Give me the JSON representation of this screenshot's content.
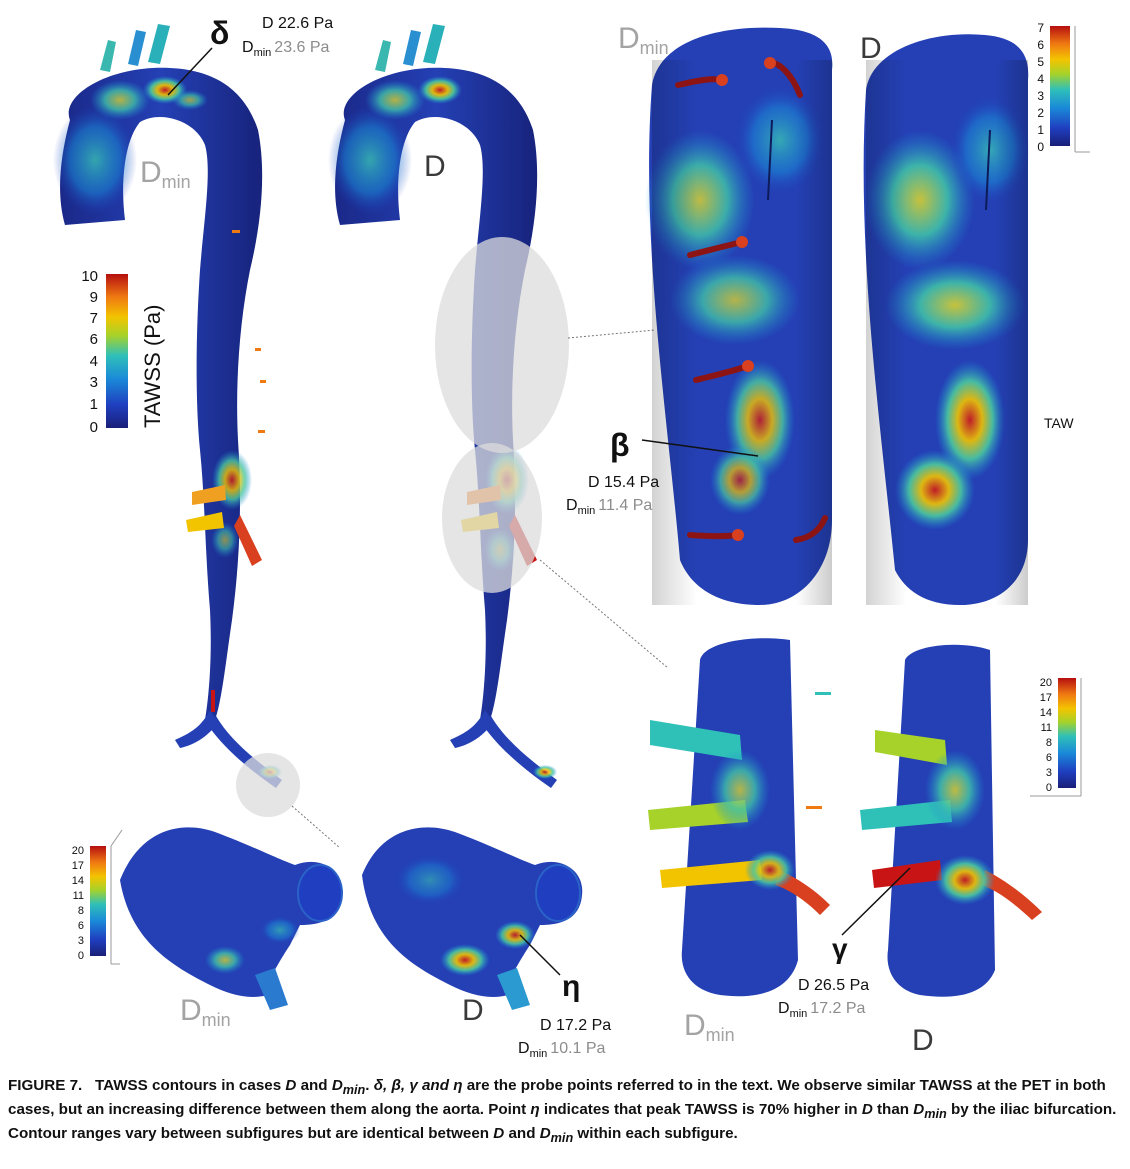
{
  "colors": {
    "low": "#1e2f9a",
    "lowmid": "#1a8ad8",
    "mid": "#2fc0b8",
    "midhigh": "#a6d22a",
    "high": "#f2c400",
    "higher": "#f07a12",
    "peak": "#c81414",
    "grey_label": "#a3a3a3",
    "dark_label": "#3a3a3a",
    "highlight_ellipse": "#dcdcdc"
  },
  "labels": {
    "dmin_base": "D",
    "dmin_sub": "min",
    "d": "D",
    "tawss_cut": "TAW"
  },
  "probes": {
    "delta": {
      "symbol": "δ",
      "d_text": "D 22.6 Pa",
      "dmin_base": "D",
      "dmin_sub": "min",
      "dmin_val": "23.6 Pa"
    },
    "beta": {
      "symbol": "β",
      "d_text": "D 15.4 Pa",
      "dmin_base": "D",
      "dmin_sub": "min",
      "dmin_val": "11.4 Pa"
    },
    "gamma": {
      "symbol": "γ",
      "d_text": "D 26.5 Pa",
      "dmin_base": "D",
      "dmin_sub": "min",
      "dmin_val": "17.2 Pa"
    },
    "eta": {
      "symbol": "η",
      "d_text": "D 17.2 Pa",
      "dmin_base": "D",
      "dmin_sub": "min",
      "dmin_val": "10.1 Pa"
    }
  },
  "scales": {
    "main": {
      "title": "TAWSS (Pa)",
      "ticks": [
        "10",
        "9",
        "7",
        "6",
        "4",
        "3",
        "1",
        "0"
      ]
    },
    "upper_right": {
      "ticks": [
        "7",
        "6",
        "5",
        "4",
        "3",
        "2",
        "1",
        "0"
      ]
    },
    "lower_right": {
      "ticks": [
        "20",
        "17",
        "14",
        "11",
        "8",
        "6",
        "3",
        "0"
      ]
    },
    "bottom_left": {
      "ticks": [
        "20",
        "17",
        "14",
        "11",
        "8",
        "6",
        "3",
        "0"
      ]
    }
  },
  "caption": {
    "label": "FIGURE 7.",
    "s1a": "TAWSS contours in cases ",
    "s1b": " and ",
    "s1c": ". ",
    "s1d": " are the probe points referred to in the text. We observe similar TAWSS at the PET in both cases, but an increasing difference between them along the aorta. Point ",
    "s1e": " indicates that peak TAWSS is 70% higher in ",
    "s1f": " than ",
    "s1g": " by the iliac bifurcation. Contour ranges vary between subfigures but are identical between ",
    "s1h": " and ",
    "s1i": " within each subfigure.",
    "var_d": "D",
    "var_dmin_base": "D",
    "var_dmin_sub": "min",
    "greek_list": "δ, β, γ and η",
    "greek_eta": "η"
  }
}
